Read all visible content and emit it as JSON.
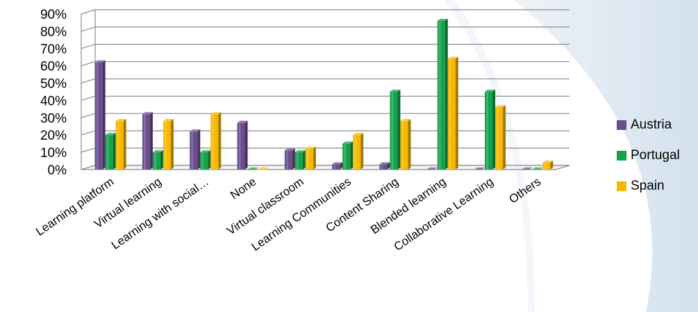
{
  "chart_data": {
    "type": "bar",
    "categories": [
      "Learning platform",
      "Virtual learning",
      "Learning with social…",
      "None",
      "Virtual classroom",
      "Learning Communities",
      "Content Sharing",
      "Blended learning",
      "Collaborative Learning",
      "Others"
    ],
    "series": [
      {
        "name": "Austria",
        "color": "#6b4d8e",
        "values": [
          62,
          32,
          22,
          27,
          11,
          3,
          3,
          0,
          0,
          0
        ]
      },
      {
        "name": "Portugal",
        "color": "#14a24a",
        "values": [
          20,
          10,
          10,
          0,
          10,
          15,
          45,
          86,
          45,
          0
        ]
      },
      {
        "name": "Spain",
        "color": "#f7b800",
        "values": [
          28,
          28,
          32,
          0,
          12,
          20,
          28,
          64,
          36,
          4
        ]
      }
    ],
    "ylim": [
      0,
      90
    ],
    "yticks": [
      "0%",
      "10%",
      "20%",
      "30%",
      "40%",
      "50%",
      "60%",
      "70%",
      "80%",
      "90%"
    ],
    "grid": true,
    "legend_position": "right"
  }
}
